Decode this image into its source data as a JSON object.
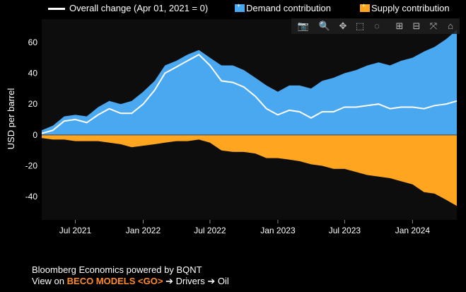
{
  "legend": {
    "overall_label": "Overall change (Apr 01, 2021 = 0)",
    "demand_label": "Demand contribution",
    "supply_label": "Supply contribution"
  },
  "footer": {
    "line1": "Bloomberg Economics powered by BQNT",
    "line2_prefix": "View on ",
    "line2_highlight": "BECO MODELS <GO>",
    "line2_suffix": " ➔ Drivers ➔ Oil"
  },
  "modebar": {
    "icons": [
      "camera-icon",
      "zoom-icon",
      "pan-icon",
      "box-select-icon",
      "lasso-icon",
      "zoom-in-icon",
      "zoom-out-icon",
      "autoscale-icon",
      "home-icon"
    ]
  },
  "colors": {
    "background": "#000000",
    "plot_background": "#0e0d0d",
    "demand": "#4aa8f0",
    "supply": "#ffa51f",
    "overall": "#ffffff",
    "highlight": "#ff8a2a"
  },
  "chart_data": {
    "type": "area",
    "ylabel": "USD per barrel",
    "ylim": [
      -55,
      75
    ],
    "yticks": [
      -40,
      -20,
      0,
      20,
      40,
      60
    ],
    "x_range": [
      "2021-04-01",
      "2024-04-30"
    ],
    "xticks": [
      {
        "date": "2021-07-01",
        "label": "Jul 2021"
      },
      {
        "date": "2022-01-01",
        "label": "Jan 2022"
      },
      {
        "date": "2022-07-01",
        "label": "Jul 2022"
      },
      {
        "date": "2023-01-01",
        "label": "Jan 2023"
      },
      {
        "date": "2023-07-01",
        "label": "Jul 2023"
      },
      {
        "date": "2024-01-01",
        "label": "Jan 2024"
      }
    ],
    "x": [
      "2021-04-01",
      "2021-05-01",
      "2021-06-01",
      "2021-07-01",
      "2021-08-01",
      "2021-09-01",
      "2021-10-01",
      "2021-11-01",
      "2021-12-01",
      "2022-01-01",
      "2022-02-01",
      "2022-03-01",
      "2022-04-01",
      "2022-05-01",
      "2022-06-01",
      "2022-07-01",
      "2022-08-01",
      "2022-09-01",
      "2022-10-01",
      "2022-11-01",
      "2022-12-01",
      "2023-01-01",
      "2023-02-01",
      "2023-03-01",
      "2023-04-01",
      "2023-05-01",
      "2023-06-01",
      "2023-07-01",
      "2023-08-01",
      "2023-09-01",
      "2023-10-01",
      "2023-11-01",
      "2023-12-01",
      "2024-01-01",
      "2024-02-01",
      "2024-03-01",
      "2024-04-01",
      "2024-04-30"
    ],
    "series": [
      {
        "name": "Demand contribution",
        "values": [
          3,
          6,
          12,
          13,
          12,
          18,
          22,
          20,
          22,
          28,
          35,
          45,
          48,
          52,
          55,
          50,
          45,
          45,
          42,
          37,
          32,
          28,
          32,
          32,
          30,
          35,
          37,
          40,
          42,
          45,
          47,
          45,
          48,
          50,
          54,
          57,
          62,
          68
        ]
      },
      {
        "name": "Supply contribution",
        "values": [
          -2,
          -3,
          -3,
          -4,
          -4,
          -4,
          -5,
          -6,
          -8,
          -7,
          -6,
          -5,
          -4,
          -4,
          -3,
          -5,
          -10,
          -11,
          -11,
          -12,
          -15,
          -15,
          -16,
          -17,
          -19,
          -20,
          -22,
          -22,
          -24,
          -26,
          -27,
          -28,
          -30,
          -32,
          -37,
          -38,
          -42,
          -46
        ]
      },
      {
        "name": "Overall change (Apr 01, 2021 = 0)",
        "values": [
          1,
          3,
          9,
          10,
          8,
          13,
          17,
          14,
          14,
          20,
          29,
          40,
          44,
          48,
          52,
          45,
          35,
          34,
          31,
          25,
          17,
          13,
          16,
          15,
          11,
          15,
          15,
          18,
          18,
          19,
          20,
          17,
          18,
          18,
          17,
          19,
          20,
          22
        ]
      }
    ],
    "grid": false,
    "legend_placement": "top"
  }
}
